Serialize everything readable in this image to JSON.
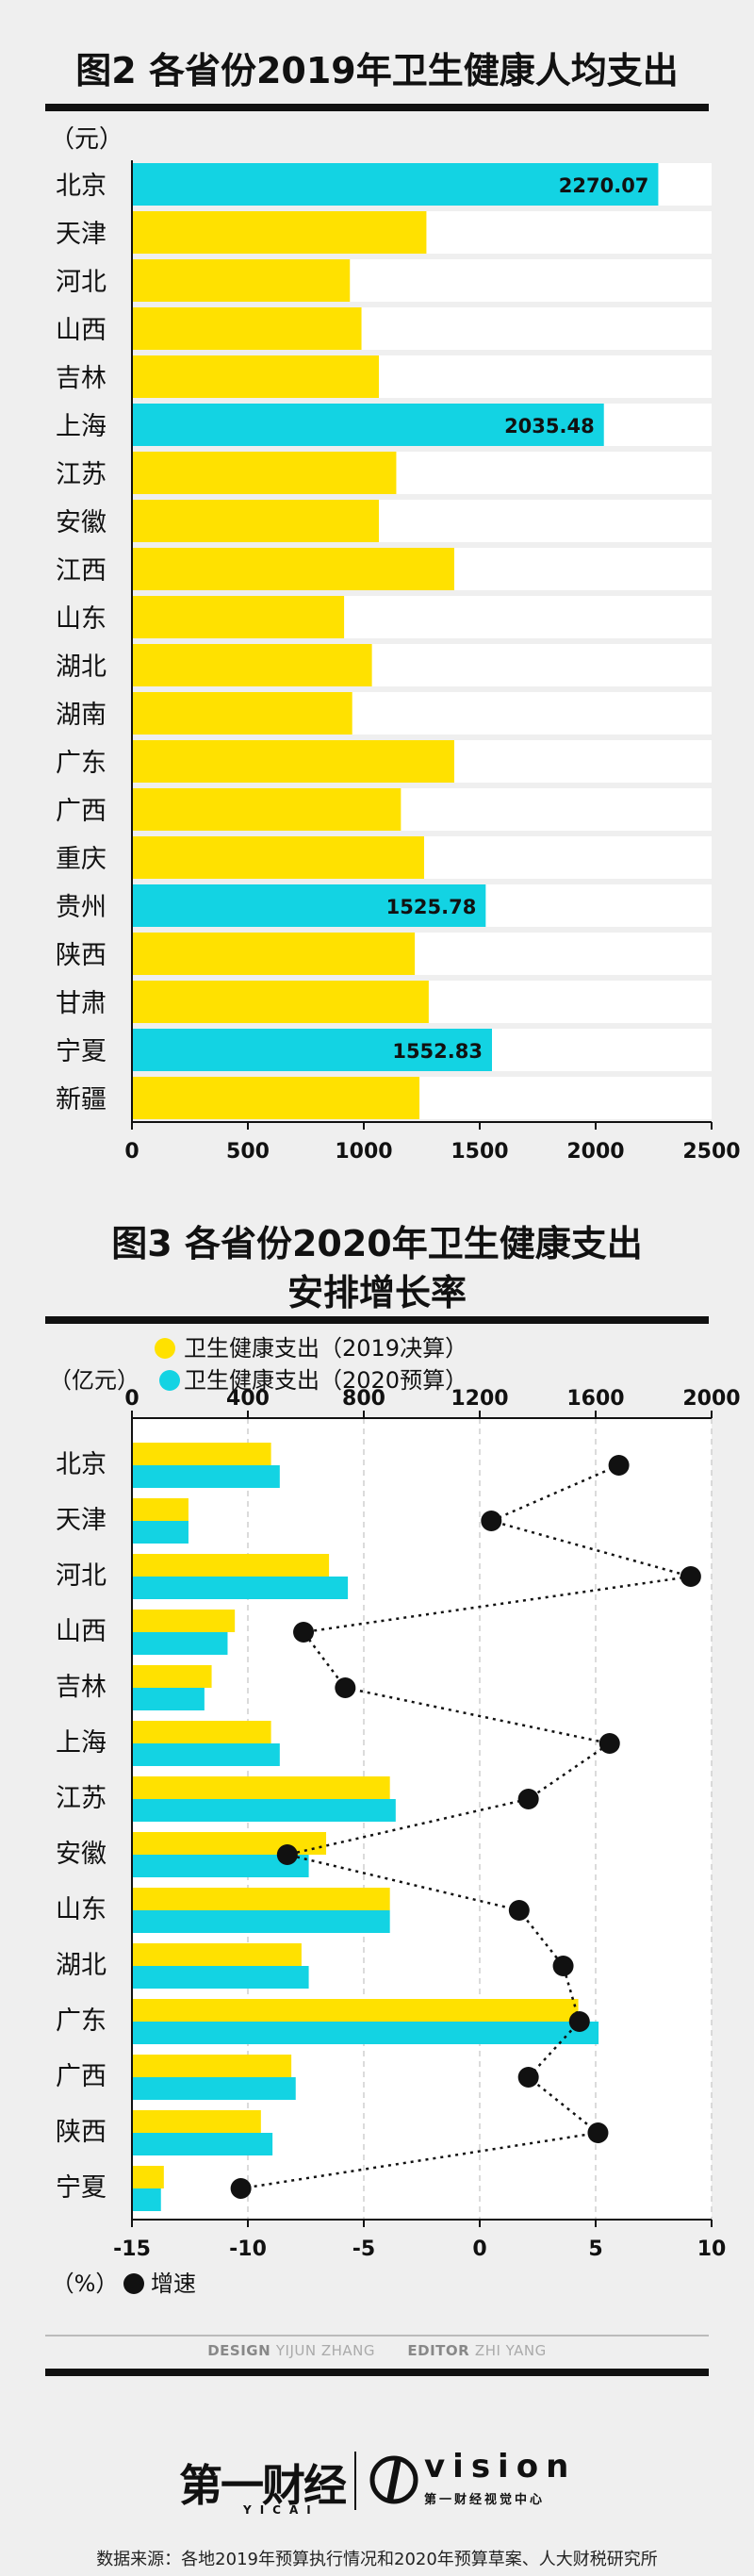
{
  "credits": {
    "design_label": "DESIGN",
    "designer": "YIJUN ZHANG",
    "editor_label": "EDITOR",
    "editor": "ZHI YANG"
  },
  "brand": {
    "yicai_cn": "第一财经",
    "yicai_en": "YICAI",
    "vision_word": "vision",
    "vision_sub": "第一财经视觉中心"
  },
  "source": "数据来源：各地2019年预算执行情况和2020年预算草案、人大财税研究所",
  "chart_data": [
    {
      "type": "bar",
      "orientation": "horizontal",
      "title": "图2 各省份2019年卫生健康人均支出",
      "unit": "（元）",
      "categories": [
        "北京",
        "天津",
        "河北",
        "山西",
        "吉林",
        "上海",
        "江苏",
        "安徽",
        "江西",
        "山东",
        "湖北",
        "湖南",
        "广东",
        "广西",
        "重庆",
        "贵州",
        "陕西",
        "甘肃",
        "宁夏",
        "新疆"
      ],
      "values": [
        2270.07,
        1270,
        940,
        990,
        1065,
        2035.48,
        1140,
        1065,
        1390,
        915,
        1035,
        950,
        1390,
        1160,
        1260,
        1525.78,
        1220,
        1280,
        1552.83,
        1240
      ],
      "labeled": [
        true,
        false,
        false,
        false,
        false,
        true,
        false,
        false,
        false,
        false,
        false,
        false,
        false,
        false,
        false,
        true,
        false,
        false,
        true,
        false
      ],
      "highlight": [
        true,
        false,
        false,
        false,
        false,
        true,
        false,
        false,
        false,
        false,
        false,
        false,
        false,
        false,
        false,
        true,
        false,
        false,
        true,
        false
      ],
      "xlim": [
        0,
        2500
      ],
      "xticks": [
        0,
        500,
        1000,
        1500,
        2000,
        2500
      ],
      "colors": {
        "base": "#ffe100",
        "highlight": "#13d3e3"
      }
    },
    {
      "type": "bar+line",
      "orientation": "horizontal",
      "title_line1": "图3 各省份2020年卫生健康支出",
      "title_line2": "安排增长率",
      "unit_top": "（亿元）",
      "unit_bottom": "（%）",
      "categories": [
        "北京",
        "天津",
        "河北",
        "山西",
        "吉林",
        "上海",
        "江苏",
        "安徽",
        "山东",
        "湖北",
        "广东",
        "广西",
        "陕西",
        "宁夏"
      ],
      "series": [
        {
          "name": "卫生健康支出（2019决算）",
          "color": "#ffe100",
          "values": [
            480,
            195,
            680,
            355,
            275,
            480,
            890,
            670,
            890,
            585,
            1540,
            550,
            445,
            110
          ]
        },
        {
          "name": "卫生健康支出（2020预算）",
          "color": "#13d3e3",
          "values": [
            510,
            195,
            745,
            330,
            250,
            510,
            910,
            610,
            890,
            610,
            1610,
            565,
            485,
            100
          ]
        }
      ],
      "growth": {
        "name": "增速",
        "color": "#111111",
        "values": [
          6.0,
          0.5,
          9.1,
          -7.6,
          -5.8,
          5.6,
          2.1,
          -8.3,
          1.7,
          3.6,
          4.3,
          2.1,
          5.1,
          -10.3
        ]
      },
      "top_axis": {
        "lim": [
          0,
          2000
        ],
        "ticks": [
          0,
          400,
          800,
          1200,
          1600,
          2000
        ]
      },
      "bottom_axis": {
        "lim": [
          -15,
          10
        ],
        "ticks": [
          -15,
          -10,
          -5,
          0,
          5,
          10
        ]
      }
    }
  ]
}
